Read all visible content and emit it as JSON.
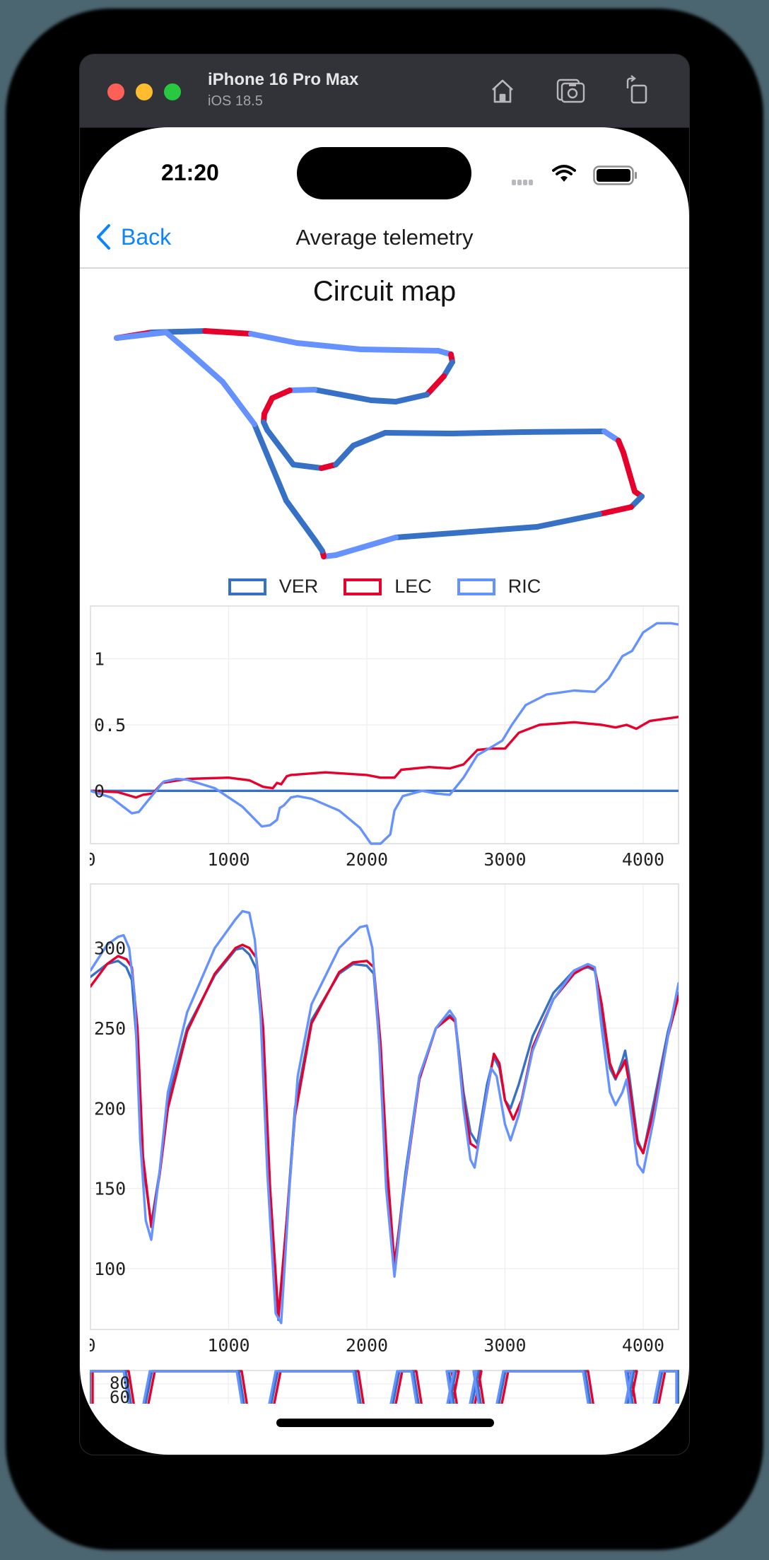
{
  "simulator": {
    "device_name": "iPhone 16 Pro Max",
    "os_version": "iOS 18.5",
    "toolbar_icons": [
      "home-icon",
      "screenshot-icon",
      "rotate-icon"
    ]
  },
  "status_bar": {
    "time": "21:20"
  },
  "nav": {
    "back_label": "Back",
    "title": "Average telemetry"
  },
  "circuit": {
    "title": "Circuit map",
    "legend": [
      {
        "label": "VER",
        "color": "#3671C6"
      },
      {
        "label": "LEC",
        "color": "#E8002D"
      },
      {
        "label": "RIC",
        "color": "#6692FF"
      }
    ]
  },
  "colors": {
    "VER": "#3671C6",
    "LEC": "#E8002D",
    "RIC": "#6692FF",
    "accent": "#0A84FF"
  },
  "chart_data": [
    {
      "type": "line",
      "title": "",
      "xlabel": "",
      "ylabel": "",
      "xlim": [
        0,
        4256
      ],
      "ylim": [
        -0.4,
        1.4
      ],
      "x_ticks": [
        "0",
        "1000",
        "2000",
        "3000",
        "4000"
      ],
      "y_ticks": [
        "0",
        "0.5",
        "1"
      ],
      "grid": true,
      "series": [
        {
          "name": "VER",
          "color": "#3671C6",
          "points": [
            [
              0,
              0
            ],
            [
              4256,
              0
            ]
          ]
        },
        {
          "name": "LEC",
          "color": "#E8002D",
          "points": [
            [
              0,
              0
            ],
            [
              200,
              -0.01
            ],
            [
              330,
              -0.05
            ],
            [
              380,
              -0.03
            ],
            [
              450,
              -0.02
            ],
            [
              520,
              0.06
            ],
            [
              700,
              0.09
            ],
            [
              1000,
              0.1
            ],
            [
              1150,
              0.08
            ],
            [
              1250,
              0.03
            ],
            [
              1320,
              0.02
            ],
            [
              1350,
              0.06
            ],
            [
              1380,
              0.05
            ],
            [
              1420,
              0.11
            ],
            [
              1450,
              0.12
            ],
            [
              1700,
              0.14
            ],
            [
              2000,
              0.12
            ],
            [
              2100,
              0.1
            ],
            [
              2200,
              0.1
            ],
            [
              2250,
              0.16
            ],
            [
              2450,
              0.18
            ],
            [
              2600,
              0.17
            ],
            [
              2700,
              0.2
            ],
            [
              2800,
              0.31
            ],
            [
              2900,
              0.32
            ],
            [
              3000,
              0.32
            ],
            [
              3100,
              0.44
            ],
            [
              3250,
              0.5
            ],
            [
              3500,
              0.52
            ],
            [
              3700,
              0.5
            ],
            [
              3800,
              0.48
            ],
            [
              3880,
              0.5
            ],
            [
              3950,
              0.47
            ],
            [
              4050,
              0.53
            ],
            [
              4256,
              0.56
            ]
          ]
        },
        {
          "name": "RIC",
          "color": "#6692FF",
          "points": [
            [
              0,
              0
            ],
            [
              150,
              -0.05
            ],
            [
              300,
              -0.17
            ],
            [
              350,
              -0.16
            ],
            [
              450,
              -0.03
            ],
            [
              530,
              0.07
            ],
            [
              620,
              0.09
            ],
            [
              700,
              0.085
            ],
            [
              900,
              0.02
            ],
            [
              1100,
              -0.12
            ],
            [
              1240,
              -0.27
            ],
            [
              1300,
              -0.26
            ],
            [
              1350,
              -0.22
            ],
            [
              1370,
              -0.13
            ],
            [
              1400,
              -0.11
            ],
            [
              1450,
              -0.05
            ],
            [
              1500,
              -0.04
            ],
            [
              1600,
              -0.06
            ],
            [
              1800,
              -0.15
            ],
            [
              1950,
              -0.28
            ],
            [
              2030,
              -0.4
            ],
            [
              2100,
              -0.4
            ],
            [
              2170,
              -0.33
            ],
            [
              2200,
              -0.15
            ],
            [
              2260,
              -0.04
            ],
            [
              2400,
              0.0
            ],
            [
              2500,
              -0.02
            ],
            [
              2600,
              -0.03
            ],
            [
              2700,
              0.1
            ],
            [
              2800,
              0.27
            ],
            [
              2900,
              0.33
            ],
            [
              2980,
              0.38
            ],
            [
              3050,
              0.5
            ],
            [
              3150,
              0.65
            ],
            [
              3300,
              0.73
            ],
            [
              3500,
              0.76
            ],
            [
              3650,
              0.75
            ],
            [
              3750,
              0.85
            ],
            [
              3850,
              1.02
            ],
            [
              3920,
              1.06
            ],
            [
              4000,
              1.2
            ],
            [
              4100,
              1.27
            ],
            [
              4200,
              1.27
            ],
            [
              4256,
              1.26
            ]
          ]
        }
      ]
    },
    {
      "type": "line",
      "title": "",
      "xlabel": "",
      "ylabel": "",
      "xlim": [
        0,
        4256
      ],
      "ylim": [
        62,
        340
      ],
      "x_ticks": [
        "0",
        "1000",
        "2000",
        "3000",
        "4000"
      ],
      "y_ticks": [
        "100",
        "150",
        "200",
        "250",
        "300"
      ],
      "grid": true,
      "series": [
        {
          "name": "VER",
          "color": "#3671C6",
          "points": [
            [
              0,
              282
            ],
            [
              120,
              290
            ],
            [
              200,
              292
            ],
            [
              260,
              288
            ],
            [
              300,
              280
            ],
            [
              340,
              235
            ],
            [
              380,
              165
            ],
            [
              440,
              128
            ],
            [
              500,
              160
            ],
            [
              560,
              205
            ],
            [
              700,
              250
            ],
            [
              900,
              283
            ],
            [
              1050,
              299
            ],
            [
              1100,
              300
            ],
            [
              1150,
              296
            ],
            [
              1200,
              287
            ],
            [
              1250,
              240
            ],
            [
              1300,
              150
            ],
            [
              1360,
              68
            ],
            [
              1420,
              130
            ],
            [
              1480,
              200
            ],
            [
              1600,
              255
            ],
            [
              1800,
              284
            ],
            [
              1900,
              290
            ],
            [
              2000,
              289
            ],
            [
              2050,
              284
            ],
            [
              2100,
              230
            ],
            [
              2150,
              150
            ],
            [
              2200,
              100
            ],
            [
              2280,
              160
            ],
            [
              2380,
              220
            ],
            [
              2500,
              250
            ],
            [
              2600,
              258
            ],
            [
              2640,
              255
            ],
            [
              2700,
              210
            ],
            [
              2750,
              185
            ],
            [
              2800,
              178
            ],
            [
              2870,
              215
            ],
            [
              2920,
              232
            ],
            [
              2960,
              225
            ],
            [
              3000,
              205
            ],
            [
              3040,
              200
            ],
            [
              3100,
              215
            ],
            [
              3200,
              245
            ],
            [
              3350,
              272
            ],
            [
              3500,
              286
            ],
            [
              3600,
              288
            ],
            [
              3650,
              286
            ],
            [
              3700,
              260
            ],
            [
              3760,
              225
            ],
            [
              3800,
              218
            ],
            [
              3850,
              230
            ],
            [
              3870,
              236
            ],
            [
              3900,
              220
            ],
            [
              3960,
              180
            ],
            [
              4000,
              172
            ],
            [
              4080,
              205
            ],
            [
              4180,
              248
            ],
            [
              4256,
              272
            ]
          ]
        },
        {
          "name": "LEC",
          "color": "#E8002D",
          "points": [
            [
              0,
              276
            ],
            [
              120,
              290
            ],
            [
              200,
              295
            ],
            [
              260,
              293
            ],
            [
              300,
              288
            ],
            [
              340,
              250
            ],
            [
              380,
              170
            ],
            [
              440,
              126
            ],
            [
              500,
              158
            ],
            [
              560,
              200
            ],
            [
              700,
              248
            ],
            [
              900,
              284
            ],
            [
              1050,
              300
            ],
            [
              1100,
              302
            ],
            [
              1150,
              300
            ],
            [
              1200,
              294
            ],
            [
              1250,
              250
            ],
            [
              1300,
              150
            ],
            [
              1360,
              70
            ],
            [
              1420,
              130
            ],
            [
              1480,
              195
            ],
            [
              1600,
              253
            ],
            [
              1800,
              285
            ],
            [
              1900,
              291
            ],
            [
              2000,
              292
            ],
            [
              2050,
              288
            ],
            [
              2100,
              240
            ],
            [
              2150,
              160
            ],
            [
              2200,
              103
            ],
            [
              2280,
              155
            ],
            [
              2380,
              218
            ],
            [
              2500,
              250
            ],
            [
              2600,
              257
            ],
            [
              2640,
              254
            ],
            [
              2700,
              205
            ],
            [
              2750,
              178
            ],
            [
              2800,
              175
            ],
            [
              2870,
              210
            ],
            [
              2920,
              234
            ],
            [
              2960,
              228
            ],
            [
              3000,
              205
            ],
            [
              3060,
              193
            ],
            [
              3120,
              205
            ],
            [
              3200,
              238
            ],
            [
              3350,
              268
            ],
            [
              3500,
              284
            ],
            [
              3600,
              289
            ],
            [
              3650,
              287
            ],
            [
              3700,
              265
            ],
            [
              3760,
              228
            ],
            [
              3800,
              219
            ],
            [
              3850,
              226
            ],
            [
              3870,
              230
            ],
            [
              3900,
              215
            ],
            [
              3960,
              178
            ],
            [
              4000,
              172
            ],
            [
              4080,
              200
            ],
            [
              4180,
              245
            ],
            [
              4256,
              270
            ]
          ]
        },
        {
          "name": "RIC",
          "color": "#6692FF",
          "points": [
            [
              0,
              286
            ],
            [
              120,
              302
            ],
            [
              200,
              307
            ],
            [
              240,
              308
            ],
            [
              280,
              300
            ],
            [
              320,
              270
            ],
            [
              360,
              180
            ],
            [
              400,
              130
            ],
            [
              440,
              118
            ],
            [
              500,
              160
            ],
            [
              560,
              210
            ],
            [
              700,
              260
            ],
            [
              900,
              300
            ],
            [
              1050,
              318
            ],
            [
              1100,
              323
            ],
            [
              1150,
              322
            ],
            [
              1190,
              305
            ],
            [
              1230,
              260
            ],
            [
              1280,
              160
            ],
            [
              1340,
              72
            ],
            [
              1380,
              66
            ],
            [
              1440,
              150
            ],
            [
              1500,
              220
            ],
            [
              1600,
              265
            ],
            [
              1800,
              300
            ],
            [
              1950,
              313
            ],
            [
              2000,
              314
            ],
            [
              2040,
              300
            ],
            [
              2090,
              240
            ],
            [
              2140,
              150
            ],
            [
              2200,
              95
            ],
            [
              2270,
              150
            ],
            [
              2380,
              220
            ],
            [
              2500,
              250
            ],
            [
              2600,
              261
            ],
            [
              2640,
              256
            ],
            [
              2700,
              200
            ],
            [
              2750,
              168
            ],
            [
              2780,
              163
            ],
            [
              2840,
              195
            ],
            [
              2900,
              225
            ],
            [
              2940,
              220
            ],
            [
              3000,
              190
            ],
            [
              3040,
              180
            ],
            [
              3100,
              196
            ],
            [
              3200,
              236
            ],
            [
              3350,
              268
            ],
            [
              3500,
              286
            ],
            [
              3600,
              290
            ],
            [
              3650,
              288
            ],
            [
              3700,
              250
            ],
            [
              3760,
              210
            ],
            [
              3800,
              202
            ],
            [
              3850,
              210
            ],
            [
              3880,
              218
            ],
            [
              3900,
              205
            ],
            [
              3960,
              165
            ],
            [
              4000,
              160
            ],
            [
              4080,
              195
            ],
            [
              4180,
              245
            ],
            [
              4256,
              278
            ]
          ]
        }
      ]
    },
    {
      "type": "line",
      "title": "",
      "note": "throttle chart, partially visible (clipped)",
      "y_ticks": [
        "60",
        "80"
      ],
      "ylim": [
        40,
        100
      ]
    }
  ]
}
